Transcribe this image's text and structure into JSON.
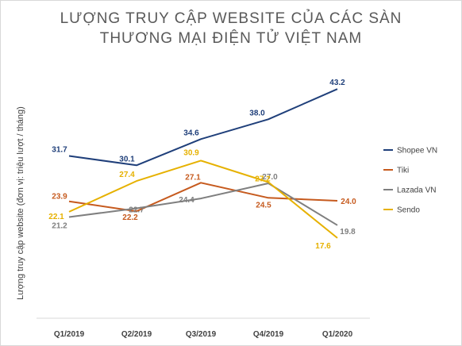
{
  "chart_data": {
    "type": "line",
    "title_lines": [
      "LƯỢNG TRUY CẬP WEBSITE CỦA CÁC SÀN",
      "THƯƠNG MẠI ĐIỆN TỬ VIỆT NAM"
    ],
    "ylabel": "Lượng truy cập website (đơn vị: triệu lượt / tháng)",
    "xlabel": "",
    "categories": [
      "Q1/2019",
      "Q2/2019",
      "Q3/2019",
      "Q4/2019",
      "Q1/2020"
    ],
    "ylim": [
      15,
      45
    ],
    "grid": false,
    "legend_position": "right",
    "series": [
      {
        "name": "Shopee VN",
        "color": "#1f3f7a",
        "values": [
          31.7,
          30.1,
          34.6,
          38.0,
          43.2
        ],
        "labels": [
          "31.7",
          "30.1",
          "34.6",
          "38.0",
          "43.2"
        ]
      },
      {
        "name": "Tiki",
        "color": "#c65a1e",
        "values": [
          23.9,
          22.2,
          27.1,
          24.5,
          24.0
        ],
        "labels": [
          "23.9",
          "22.2",
          "27.1",
          "24.5",
          "24.0"
        ]
      },
      {
        "name": "Lazada VN",
        "color": "#7f7f7f",
        "values": [
          21.2,
          22.7,
          24.4,
          27.0,
          19.8
        ],
        "labels": [
          "21.2",
          "22.7",
          "24.4",
          "27.0",
          "19.8"
        ]
      },
      {
        "name": "Sendo",
        "color": "#e6b100",
        "values": [
          22.1,
          27.4,
          30.9,
          27.2,
          17.6
        ],
        "labels": [
          "22.1",
          "27.4",
          "30.9",
          "27.2",
          "17.6"
        ]
      }
    ]
  }
}
